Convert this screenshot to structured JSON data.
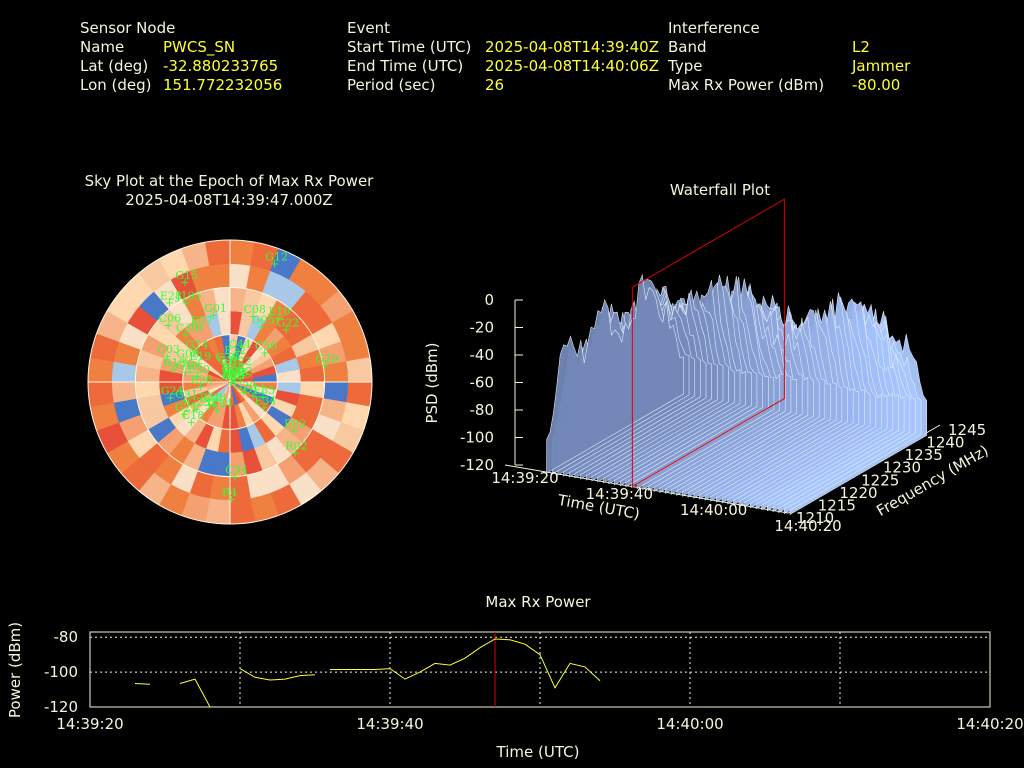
{
  "header": {
    "sensor": {
      "heading": "Sensor Node",
      "rows": [
        {
          "label": "Name",
          "value": "PWCS_SN"
        },
        {
          "label": "Lat (deg)",
          "value": "-32.880233765"
        },
        {
          "label": "Lon (deg)",
          "value": "151.772232056"
        }
      ]
    },
    "event": {
      "heading": "Event",
      "rows": [
        {
          "label": "Start Time (UTC)",
          "value": "2025-04-08T14:39:40Z"
        },
        {
          "label": "End Time (UTC)",
          "value": "2025-04-08T14:40:06Z"
        },
        {
          "label": "Period (sec)",
          "value": "26"
        }
      ]
    },
    "interference": {
      "heading": "Interference",
      "rows": [
        {
          "label": "Band",
          "value": "L2"
        },
        {
          "label": "Type",
          "value": "Jammer"
        },
        {
          "label": "Max Rx Power (dBm)",
          "value": "-80.00"
        }
      ]
    }
  },
  "colors": {
    "background": "#000000",
    "text": "#f5f5dc",
    "value": "#ffff33",
    "satellite": "#33ff33",
    "marker": "#cc0000",
    "trace": "#ffff33"
  },
  "chart_data": [
    {
      "type": "polar-heatmap",
      "title": "Sky Plot at the Epoch of Max Rx Power",
      "subtitle": "2025-04-08T14:39:47.000Z",
      "rings": 3,
      "satellites": [
        {
          "id": "E08",
          "az": 0,
          "el": 90
        },
        {
          "id": "J193",
          "az": 12,
          "el": 88
        },
        {
          "id": "C22",
          "az": 28,
          "el": 80
        },
        {
          "id": "G06",
          "az": 355,
          "el": 86
        },
        {
          "id": "C36",
          "az": 345,
          "el": 80
        },
        {
          "id": "G28",
          "az": 340,
          "el": 78
        },
        {
          "id": "E12",
          "az": 5,
          "el": 74
        },
        {
          "id": "C44",
          "az": 12,
          "el": 70
        },
        {
          "id": "G14",
          "az": 310,
          "el": 60
        },
        {
          "id": "C30",
          "az": 316,
          "el": 48
        },
        {
          "id": "E07",
          "az": 330,
          "el": 50
        },
        {
          "id": "G01",
          "az": 345,
          "el": 46
        },
        {
          "id": "C08",
          "az": 18,
          "el": 46
        },
        {
          "id": "G05",
          "az": 28,
          "el": 50
        },
        {
          "id": "C50",
          "az": 48,
          "el": 62
        },
        {
          "id": "E10",
          "az": 36,
          "el": 40
        },
        {
          "id": "G22",
          "az": 46,
          "el": 42
        },
        {
          "id": "J195",
          "az": 330,
          "el": 32
        },
        {
          "id": "C06",
          "az": 312,
          "el": 36
        },
        {
          "id": "E19",
          "az": 300,
          "el": 66
        },
        {
          "id": "G08",
          "az": 295,
          "el": 58
        },
        {
          "id": "C40",
          "az": 282,
          "el": 60
        },
        {
          "id": "E28",
          "az": 322,
          "el": 26
        },
        {
          "id": "G15",
          "az": 335,
          "el": 20
        },
        {
          "id": "G12",
          "az": 20,
          "el": 10
        },
        {
          "id": "G20",
          "az": 80,
          "el": 30
        },
        {
          "id": "E01",
          "az": 72,
          "el": 88
        },
        {
          "id": "E02",
          "az": 65,
          "el": 84
        },
        {
          "id": "G19",
          "az": 88,
          "el": 90
        },
        {
          "id": "C03",
          "az": 292,
          "el": 46
        },
        {
          "id": "E30",
          "az": 280,
          "el": 68
        },
        {
          "id": "R18",
          "az": 282,
          "el": 52
        },
        {
          "id": "E26",
          "az": 262,
          "el": 70
        },
        {
          "id": "G31",
          "az": 248,
          "el": 58
        },
        {
          "id": "G24",
          "az": 256,
          "el": 50
        },
        {
          "id": "C34",
          "az": 178,
          "el": 30
        },
        {
          "id": "E02s",
          "label": "E02",
          "az": 128,
          "el": 40
        },
        {
          "id": "R02",
          "az": 138,
          "el": 30
        },
        {
          "id": "E35",
          "az": 116,
          "el": 68
        },
        {
          "id": "E34",
          "az": 128,
          "el": 64
        },
        {
          "id": "G11",
          "az": 122,
          "el": 74
        },
        {
          "id": "G20b",
          "label": "G20",
          "az": 132,
          "el": 80
        },
        {
          "id": "G21",
          "az": 236,
          "el": 54
        },
        {
          "id": "G23",
          "az": 232,
          "el": 62
        },
        {
          "id": "C18",
          "az": 225,
          "el": 54
        },
        {
          "id": "E40",
          "az": 225,
          "el": 70
        },
        {
          "id": "C38",
          "az": 220,
          "el": 72
        },
        {
          "id": "J184",
          "az": 208,
          "el": 70
        },
        {
          "id": "R4",
          "az": 180,
          "el": 16
        }
      ]
    },
    {
      "type": "surface-3d",
      "title": "Waterfall Plot",
      "xlabel": "Time (UTC)",
      "ylabel": "Frequency (MHz)",
      "zlabel": "PSD (dBm)",
      "x_ticks": [
        "14:39:20",
        "14:39:40",
        "14:40:00",
        "14:40:20"
      ],
      "y_ticks": [
        "1210",
        "1215",
        "1220",
        "1225",
        "1230",
        "1235",
        "1240",
        "1245"
      ],
      "z_ticks": [
        "0",
        "-20",
        "-40",
        "-60",
        "-80",
        "-100",
        "-120"
      ],
      "zlim": [
        -120,
        0
      ],
      "ylim": [
        1210,
        1245
      ],
      "marker_time": "14:39:47"
    },
    {
      "type": "line",
      "title": "Max Rx Power",
      "xlabel": "Time (UTC)",
      "ylabel": "Power (dBm)",
      "x_ticks": [
        "14:39:20",
        "14:39:40",
        "14:40:00",
        "14:40:20"
      ],
      "y_ticks": [
        "-80",
        "-100",
        "-120"
      ],
      "xlim": [
        0,
        60
      ],
      "ylim": [
        -120,
        -77
      ],
      "marker_x": 27,
      "segments": [
        [
          [
            3,
            -106.5
          ],
          [
            4,
            -107
          ]
        ],
        [
          [
            6,
            -106.5
          ],
          [
            7,
            -104
          ],
          [
            8,
            -121
          ]
        ],
        [
          [
            10,
            -98
          ],
          [
            11,
            -103
          ],
          [
            12,
            -104.5
          ],
          [
            13,
            -104
          ],
          [
            14,
            -102
          ],
          [
            15,
            -101.5
          ]
        ],
        [
          [
            16,
            -98.5
          ],
          [
            17,
            -98.5
          ],
          [
            18,
            -98.5
          ],
          [
            19,
            -98.5
          ],
          [
            20,
            -98
          ],
          [
            21,
            -104
          ],
          [
            22,
            -100
          ],
          [
            23,
            -95
          ],
          [
            24,
            -96
          ],
          [
            25,
            -92
          ],
          [
            26,
            -86
          ],
          [
            27,
            -81
          ],
          [
            28,
            -81.5
          ],
          [
            29,
            -84
          ],
          [
            30,
            -90
          ],
          [
            31,
            -109
          ],
          [
            32,
            -95
          ],
          [
            33,
            -97
          ],
          [
            34,
            -105
          ]
        ]
      ]
    }
  ]
}
